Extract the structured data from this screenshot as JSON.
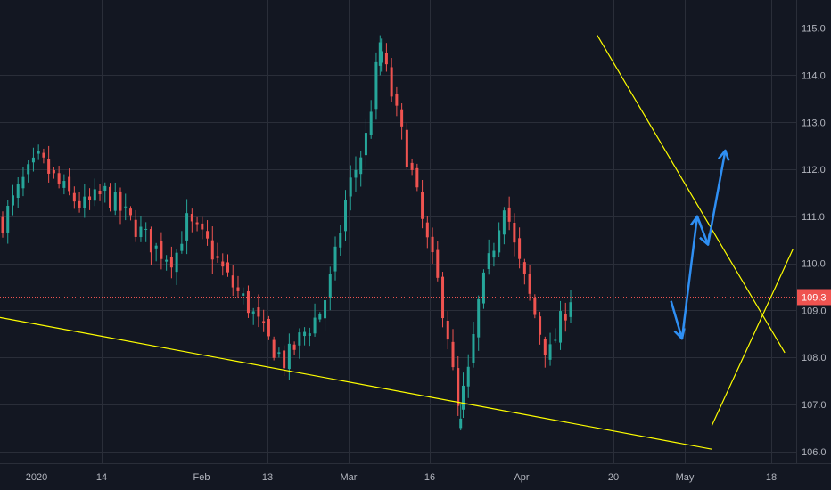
{
  "chart_data": {
    "type": "candlestick",
    "x_axis_labels": [
      "2020",
      "14",
      "Feb",
      "13",
      "Mar",
      "16",
      "Apr",
      "20",
      "May",
      "18"
    ],
    "y_ticks": [
      106.0,
      107.0,
      108.0,
      109.0,
      110.0,
      111.0,
      112.0,
      113.0,
      114.0,
      115.0
    ],
    "y_tick_labels": [
      "106.0",
      "107.0",
      "108.0",
      "109.0",
      "110.0",
      "111.0",
      "112.0",
      "113.0",
      "114.0",
      "115.0"
    ],
    "ylim": [
      105.75,
      115.6
    ],
    "x_range_days": [
      -15,
      140
    ],
    "last_price": 109.3,
    "last_price_label": "109.3",
    "trading_days": 112,
    "close_anchors": [
      [
        0,
        110.9
      ],
      [
        6,
        111.8
      ],
      [
        10,
        112.2
      ],
      [
        16,
        111.6
      ],
      [
        22,
        111.2
      ],
      [
        28,
        111.5
      ],
      [
        36,
        110.8
      ],
      [
        42,
        110.3
      ],
      [
        47,
        110.1
      ],
      [
        50,
        110.9
      ],
      [
        56,
        110.4
      ],
      [
        62,
        109.6
      ],
      [
        67,
        109.1
      ],
      [
        72,
        108.4
      ],
      [
        77,
        107.9
      ],
      [
        82,
        108.5
      ],
      [
        87,
        109.0
      ],
      [
        90,
        109.8
      ],
      [
        94,
        111.5
      ],
      [
        99,
        112.6
      ],
      [
        103,
        114.6
      ],
      [
        108,
        113.0
      ],
      [
        112,
        111.8
      ],
      [
        115,
        110.7
      ],
      [
        119,
        109.5
      ],
      [
        122,
        108.3
      ],
      [
        124,
        106.8
      ],
      [
        127,
        107.6
      ],
      [
        130,
        109.2
      ],
      [
        134,
        110.4
      ],
      [
        137,
        111.4
      ],
      [
        140,
        110.2
      ],
      [
        143,
        109.5
      ],
      [
        146,
        108.7
      ],
      [
        149,
        108.0
      ],
      [
        152,
        108.7
      ],
      [
        155,
        109.3
      ]
    ],
    "highlight_candles": [
      [
        103,
        114.2,
        114.85,
        114.0,
        114.7
      ],
      [
        125,
        106.5,
        107.0,
        106.45,
        106.7
      ]
    ],
    "trendlines": [
      {
        "color": "#ffff00",
        "points": [
          [
            -15,
            108.85
          ],
          [
            125,
            106.05
          ]
        ]
      },
      {
        "color": "#ffff00",
        "points": [
          [
            104,
            114.85
          ],
          [
            138.5,
            108.1
          ]
        ]
      },
      {
        "color": "#ffff00",
        "points": [
          [
            125,
            106.55
          ],
          [
            140,
            110.3
          ]
        ]
      }
    ],
    "arrow_path": {
      "color": "#2f8ff3",
      "points": [
        [
          117.5,
          109.2
        ],
        [
          119.5,
          108.4
        ],
        [
          122.3,
          111.0
        ],
        [
          124.3,
          110.4
        ],
        [
          127.5,
          112.4
        ]
      ]
    },
    "colors": {
      "background": "#131722",
      "grid": "#2a2e39",
      "up": "#26a69a",
      "down": "#ef5350",
      "price_line": "#ef5350",
      "price_tag": "#ef5350",
      "text": "#b2b5be"
    }
  }
}
